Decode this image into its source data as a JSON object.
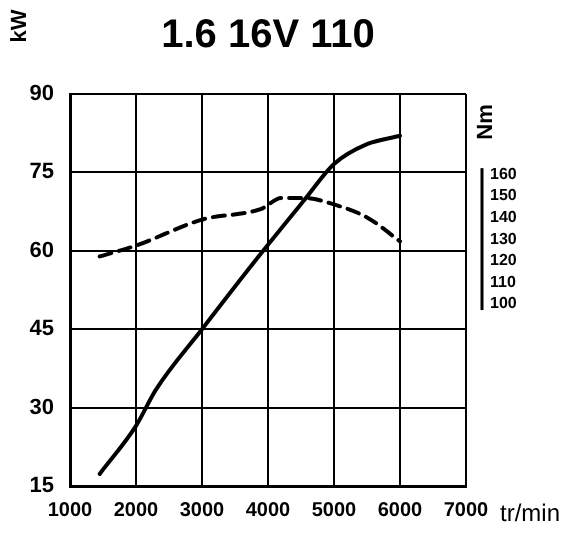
{
  "chart_data": {
    "type": "line",
    "title": "1.6 16V 110",
    "xlabel": "tr/min",
    "ylabel": "kW",
    "y2label": "Nm",
    "xlim": [
      1000,
      7000
    ],
    "xticks": [
      1000,
      2000,
      3000,
      4000,
      5000,
      6000,
      7000
    ],
    "ylim": [
      15,
      90
    ],
    "yticks": [
      15,
      30,
      45,
      60,
      75,
      90
    ],
    "y2lim": [
      16,
      197
    ],
    "y2ticks": [
      100,
      110,
      120,
      130,
      140,
      150,
      160
    ],
    "grid": true,
    "legend": false,
    "marker": "none",
    "series": [
      {
        "color": "#000000",
        "line_style": "solid",
        "x": [
          1450,
          2000,
          2300,
          3000,
          3800,
          4550,
          5000,
          5500,
          6000
        ],
        "values": [
          17.3,
          26.5,
          33.4,
          45,
          58,
          69.7,
          76.6,
          80.4,
          82
        ]
      },
      {
        "color": "#000000",
        "line_style": "dashed",
        "axis": "y2",
        "x": [
          1450,
          2000,
          3000,
          3900,
          4200,
          4550,
          5000,
          5500,
          6000
        ],
        "values": [
          122,
          127,
          139,
          144,
          149,
          149,
          146,
          140,
          129
        ]
      }
    ]
  }
}
